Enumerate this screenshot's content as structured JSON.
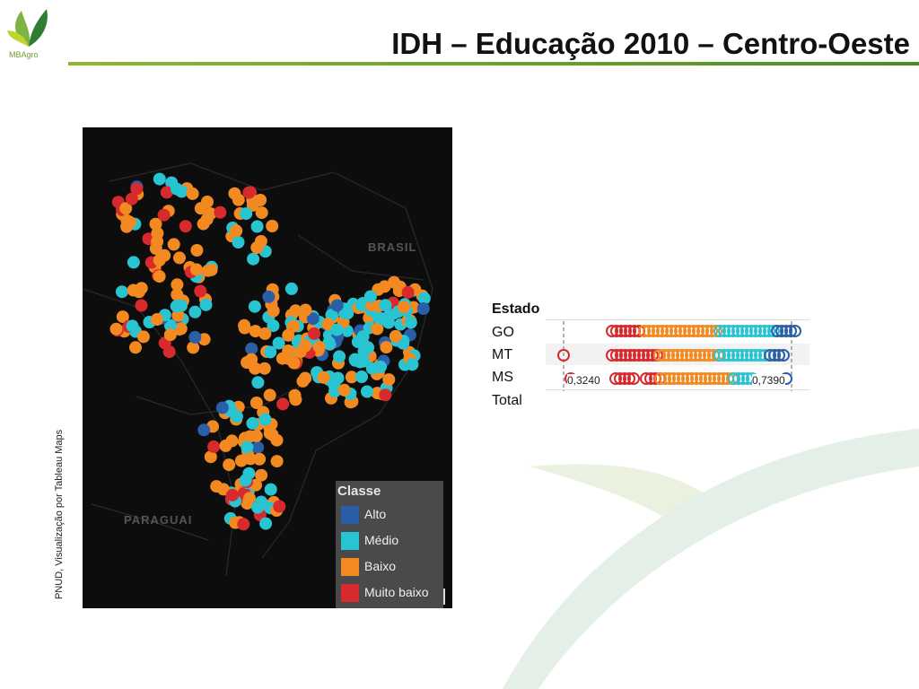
{
  "header": {
    "logo_text": "MBAgro",
    "title": "IDH – Educação 2010 – Centro-Oeste"
  },
  "map": {
    "place_labels": [
      "BRASIL",
      "PARAGUAI"
    ],
    "legend": {
      "title": "Classe",
      "items": [
        {
          "label": "Alto",
          "color": "#2a5fa8"
        },
        {
          "label": "Médio",
          "color": "#29c4d2"
        },
        {
          "label": "Baixo",
          "color": "#f28a21"
        },
        {
          "label": "Muito baixo",
          "color": "#d8292d"
        }
      ]
    }
  },
  "source": "PNUD, Visualização por Tableau Maps",
  "dot_chart": {
    "header": "Estado",
    "rows": [
      "GO",
      "MT",
      "MS",
      "Total"
    ],
    "min_label": "0,3240",
    "max_label": "0,7390",
    "colors": {
      "alto": "#2a5fa8",
      "medio": "#29c4d2",
      "baixo": "#f28a21",
      "muito_baixo": "#d8292d"
    }
  }
}
